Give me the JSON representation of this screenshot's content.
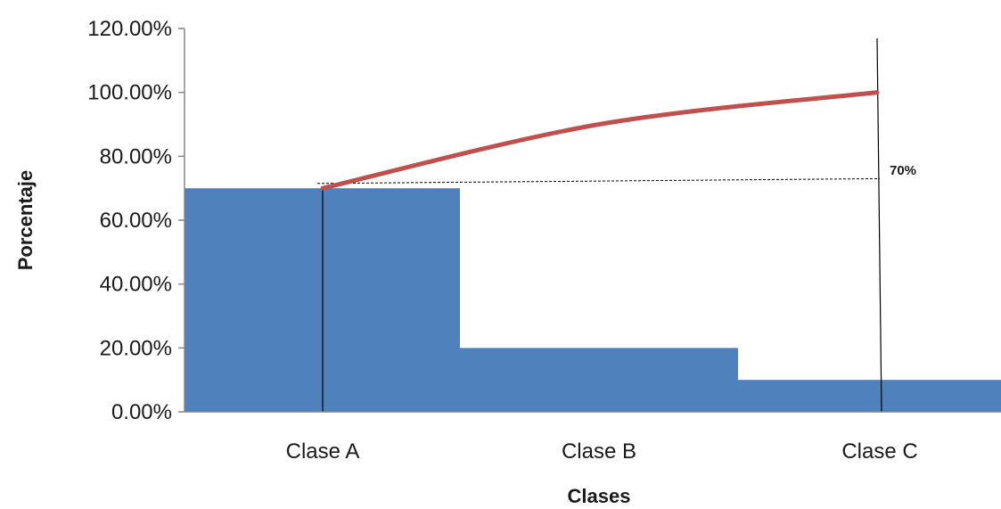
{
  "chart_data": {
    "type": "bar",
    "title": "",
    "xlabel": "Clases",
    "ylabel": "Porcentaje",
    "categories": [
      "Clase A",
      "Clase B",
      "Clase C"
    ],
    "series": [
      {
        "type": "bar",
        "values": [
          70,
          20,
          10
        ],
        "color": "#4f81bd"
      },
      {
        "type": "line",
        "values": [
          70,
          90,
          100
        ],
        "color": "#c0504d"
      }
    ],
    "ylim": [
      0,
      120
    ],
    "y_ticks": [
      0,
      20,
      40,
      60,
      80,
      100,
      120
    ],
    "y_tick_labels": [
      "0.00%",
      "20.00%",
      "40.00%",
      "60.00%",
      "80.00%",
      "100.00%",
      "120.00%"
    ],
    "threshold": {
      "label": "70%",
      "from_value": 71.5,
      "to_value": 73
    },
    "grid": false,
    "legend": "none"
  }
}
